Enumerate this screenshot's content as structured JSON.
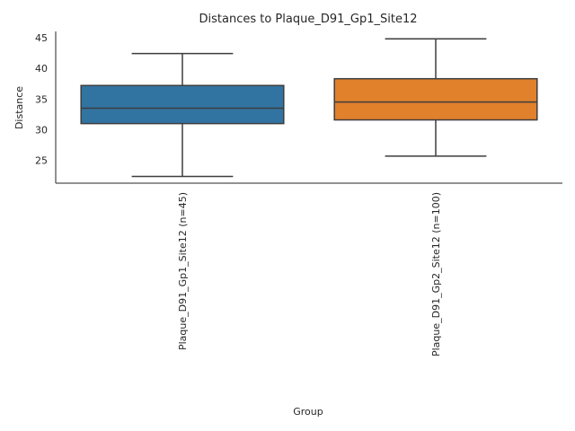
{
  "chart_data": {
    "type": "box",
    "title": "Distances to Plaque_D91_Gp1_Site12",
    "xlabel": "Group",
    "ylabel": "Distance",
    "ylim": [
      21.3,
      46.0
    ],
    "yticks": [
      25,
      30,
      35,
      40,
      45
    ],
    "grid": false,
    "legend": "none",
    "categories": [
      "Plaque_D91_Gp1_Site12 (n=45)",
      "Plaque_D91_Gp2_Site12 (n=100)"
    ],
    "boxes": [
      {
        "whisker_low": 22.4,
        "q1": 31.0,
        "median": 33.5,
        "q3": 37.2,
        "whisker_high": 42.4,
        "color": "#3274a1"
      },
      {
        "whisker_low": 25.7,
        "q1": 31.6,
        "median": 34.5,
        "q3": 38.3,
        "whisker_high": 44.8,
        "color": "#e1812c"
      }
    ]
  }
}
